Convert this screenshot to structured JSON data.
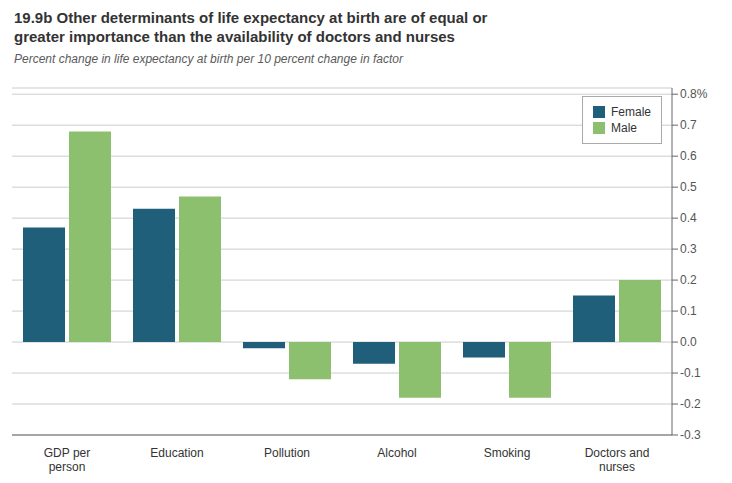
{
  "chart_data": {
    "type": "bar",
    "title": "19.9b Other determinants of life expectancy at birth are of equal or\ngreater importance than the availability of doctors and nurses",
    "subtitle": "Percent change in life expectancy at birth per 10 percent change in factor",
    "categories": [
      "GDP per\nperson",
      "Education",
      "Pollution",
      "Alcohol",
      "Smoking",
      "Doctors and\nnurses"
    ],
    "series": [
      {
        "name": "Female",
        "color": "#1f5f7a",
        "values": [
          0.37,
          0.43,
          -0.02,
          -0.07,
          -0.05,
          0.15
        ]
      },
      {
        "name": "Male",
        "color": "#8dc06e",
        "values": [
          0.68,
          0.47,
          -0.12,
          -0.18,
          -0.18,
          0.2
        ]
      }
    ],
    "ylim": [
      -0.3,
      0.82
    ],
    "yticks": [
      -0.3,
      -0.2,
      -0.1,
      {
        "value": 0.0,
        "label": "0.0"
      },
      0.1,
      0.2,
      0.3,
      0.4,
      0.5,
      0.6,
      0.7,
      {
        "value": 0.8,
        "label": "0.8%"
      }
    ],
    "grid": true,
    "legend": "upper right"
  }
}
